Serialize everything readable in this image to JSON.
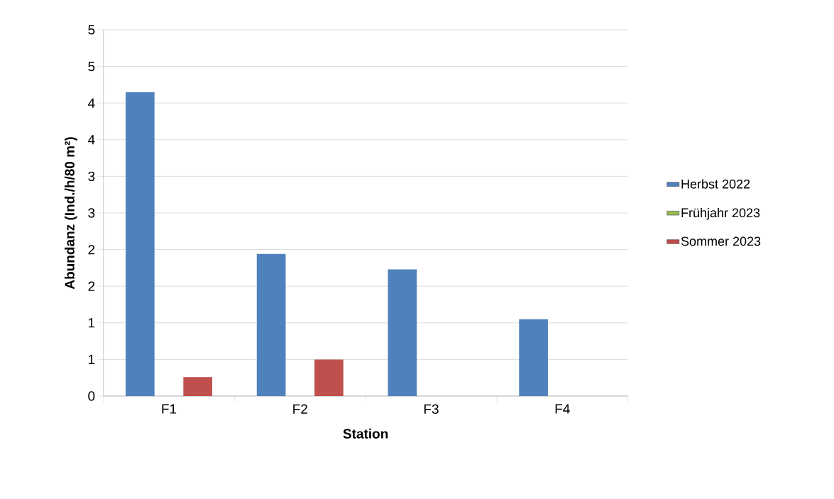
{
  "chart_data": {
    "type": "bar",
    "xlabel": "Station",
    "ylabel": "Abundanz (Ind./h/80 m²)",
    "categories": [
      "F1",
      "F2",
      "F3",
      "F4"
    ],
    "series": [
      {
        "name": "Herbst 2022",
        "color": "#4f81bd",
        "values": [
          4.15,
          1.94,
          1.73,
          1.05
        ]
      },
      {
        "name": "Frühjahr 2023",
        "color": "#9bbb59",
        "values": [
          0,
          0,
          0,
          0
        ]
      },
      {
        "name": "Sommer 2023",
        "color": "#c0504d",
        "values": [
          0.26,
          0.5,
          0,
          0
        ]
      }
    ],
    "ylim": [
      0,
      5
    ],
    "yticks": [
      0,
      {
        "value": 0.5,
        "label": "1"
      },
      {
        "value": 1,
        "label": "1"
      },
      {
        "value": 1.5,
        "label": "2"
      },
      {
        "value": 2,
        "label": "2"
      },
      {
        "value": 2.5,
        "label": "3"
      },
      {
        "value": 3,
        "label": "3"
      },
      {
        "value": 3.5,
        "label": "4"
      },
      {
        "value": 4,
        "label": "4"
      },
      {
        "value": 4.5,
        "label": "5"
      },
      5
    ],
    "grid": "y",
    "legend": "right"
  }
}
